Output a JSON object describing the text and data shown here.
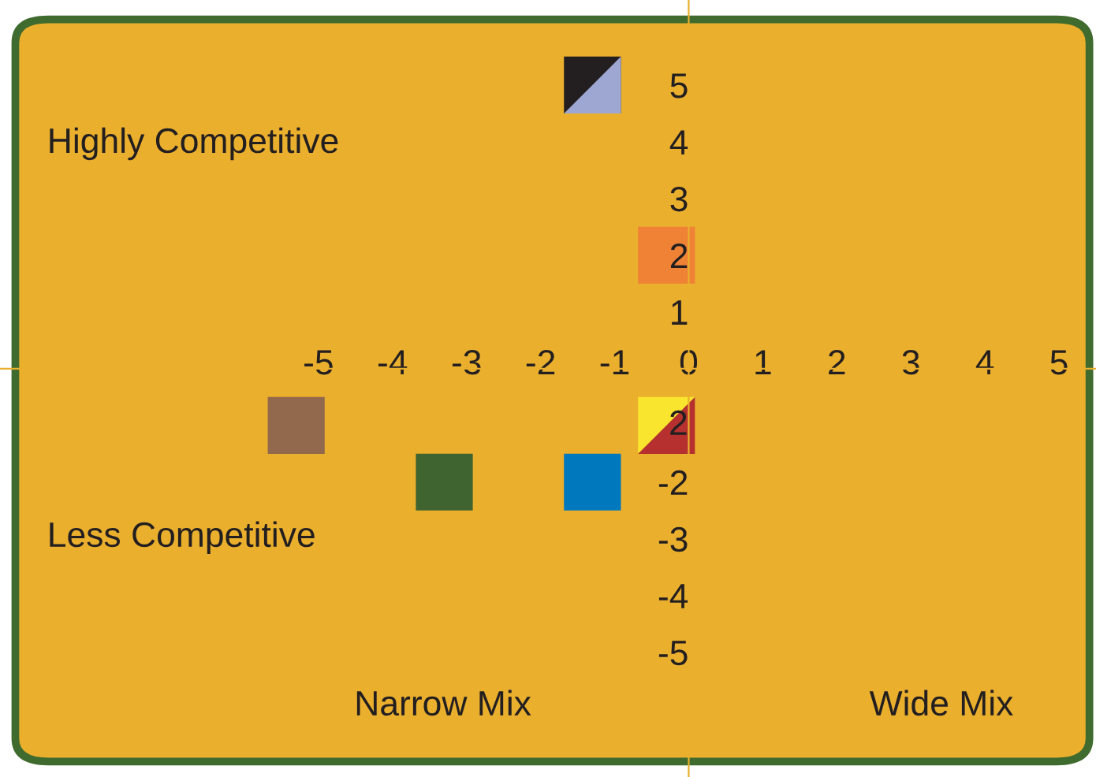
{
  "chart_data": {
    "type": "scatter",
    "xlim": [
      -9.3,
      5.5
    ],
    "ylim": [
      -7.2,
      6.5
    ],
    "xticks": [
      -5,
      -4,
      -3,
      -2,
      -1,
      0,
      1,
      2,
      3,
      4,
      5
    ],
    "yticks": [
      5,
      4,
      3,
      2,
      1,
      -2,
      -3,
      -4,
      -5
    ],
    "series": [
      {
        "marker": "square",
        "x": [
          -1.3,
          -0.3,
          -5.3,
          -3.3,
          -1.3,
          -0.3
        ],
        "values": [
          5,
          2,
          -1,
          -2,
          -2,
          -1
        ],
        "colors": [
          "#231f20",
          "#f08236",
          "#93694d",
          "#3f6430",
          "#0078bd",
          "#f9e52d"
        ]
      },
      {
        "marker": "triangle",
        "x": [
          -1.3,
          -0.3
        ],
        "values": [
          5,
          -1
        ],
        "colors": [
          "#9ea7d2",
          "#b5302f"
        ]
      }
    ],
    "annotations": [
      "Highly Competitive",
      "Less Competitive",
      "Narrow Mix",
      "Wide Mix",
      "2"
    ],
    "grid": false
  }
}
